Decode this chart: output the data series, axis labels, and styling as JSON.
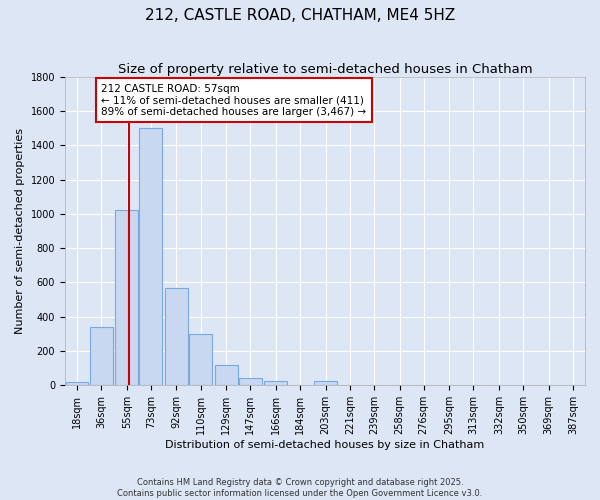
{
  "title": "212, CASTLE ROAD, CHATHAM, ME4 5HZ",
  "subtitle": "Size of property relative to semi-detached houses in Chatham",
  "xlabel": "Distribution of semi-detached houses by size in Chatham",
  "ylabel": "Number of semi-detached properties",
  "bin_labels": [
    "18sqm",
    "36sqm",
    "55sqm",
    "73sqm",
    "92sqm",
    "110sqm",
    "129sqm",
    "147sqm",
    "166sqm",
    "184sqm",
    "203sqm",
    "221sqm",
    "239sqm",
    "258sqm",
    "276sqm",
    "295sqm",
    "313sqm",
    "332sqm",
    "350sqm",
    "369sqm",
    "387sqm"
  ],
  "bin_centers": [
    18,
    36,
    55,
    73,
    92,
    110,
    129,
    147,
    166,
    184,
    203,
    221,
    239,
    258,
    276,
    295,
    313,
    332,
    350,
    369,
    387
  ],
  "bar_heights": [
    20,
    340,
    1020,
    1500,
    570,
    300,
    120,
    40,
    25,
    0,
    25,
    0,
    0,
    0,
    0,
    0,
    0,
    0,
    0,
    0,
    0
  ],
  "bar_color": "#c8d8f0",
  "bar_edge_color": "#7aaadd",
  "property_line_x": 57,
  "property_line_color": "#cc0000",
  "annotation_text": "212 CASTLE ROAD: 57sqm\n← 11% of semi-detached houses are smaller (411)\n89% of semi-detached houses are larger (3,467) →",
  "annotation_box_facecolor": "#ffffff",
  "annotation_box_edgecolor": "#cc0000",
  "ylim": [
    0,
    1800
  ],
  "yticks": [
    0,
    200,
    400,
    600,
    800,
    1000,
    1200,
    1400,
    1600,
    1800
  ],
  "xlim_left": 9,
  "xlim_right": 396,
  "background_color": "#dce6f5",
  "grid_color": "#ffffff",
  "title_fontsize": 11,
  "subtitle_fontsize": 9.5,
  "axis_label_fontsize": 8,
  "tick_fontsize": 7,
  "annotation_fontsize": 7.5,
  "footer_text": "Contains HM Land Registry data © Crown copyright and database right 2025.\nContains public sector information licensed under the Open Government Licence v3.0."
}
